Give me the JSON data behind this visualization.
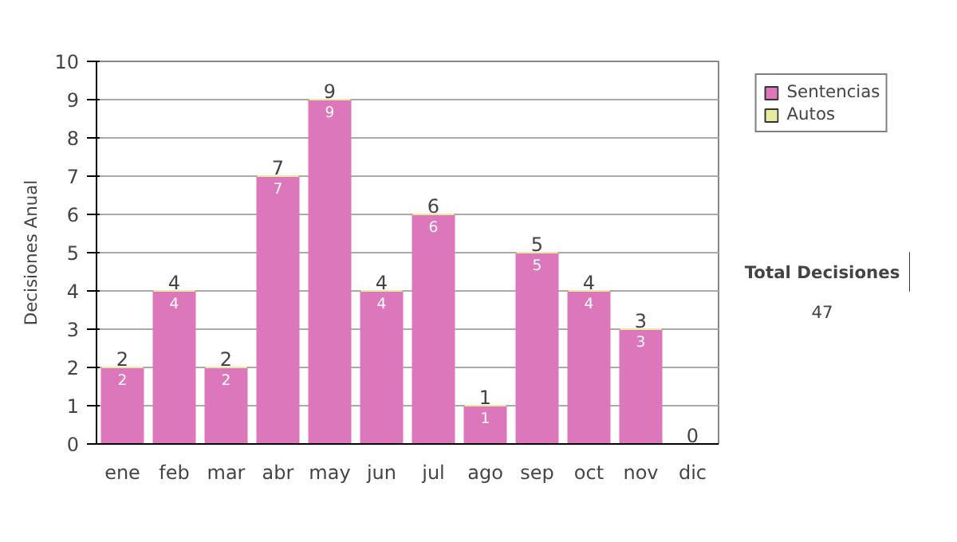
{
  "chart_data": {
    "type": "bar",
    "ylabel": "Decisiones Anual",
    "categories": [
      "ene",
      "feb",
      "mar",
      "abr",
      "may",
      "jun",
      "jul",
      "ago",
      "sep",
      "oct",
      "nov",
      "dic"
    ],
    "stacked": true,
    "series": [
      {
        "name": "Sentencias",
        "color": "#dd77bb",
        "values": [
          2,
          4,
          2,
          7,
          9,
          4,
          6,
          1,
          5,
          4,
          3,
          0
        ],
        "value_labels": [
          "2",
          "4",
          "2",
          "7",
          "9",
          "4",
          "6",
          "1",
          "5",
          "4",
          "3",
          null
        ]
      },
      {
        "name": "Autos",
        "color": "#e8eaa0",
        "values": [
          0,
          0,
          0,
          0,
          0,
          0,
          0,
          0,
          0,
          0,
          0,
          0
        ]
      }
    ],
    "totals": [
      "2",
      "4",
      "2",
      "7",
      "9",
      "4",
      "6",
      "1",
      "5",
      "4",
      "3",
      "0"
    ],
    "ylim": [
      0,
      10
    ],
    "yticks": [
      0,
      1,
      2,
      3,
      4,
      5,
      6,
      7,
      8,
      9,
      10
    ],
    "grid": "y",
    "legend": "right",
    "annotations": [
      "Total Decisiones",
      "47"
    ]
  }
}
